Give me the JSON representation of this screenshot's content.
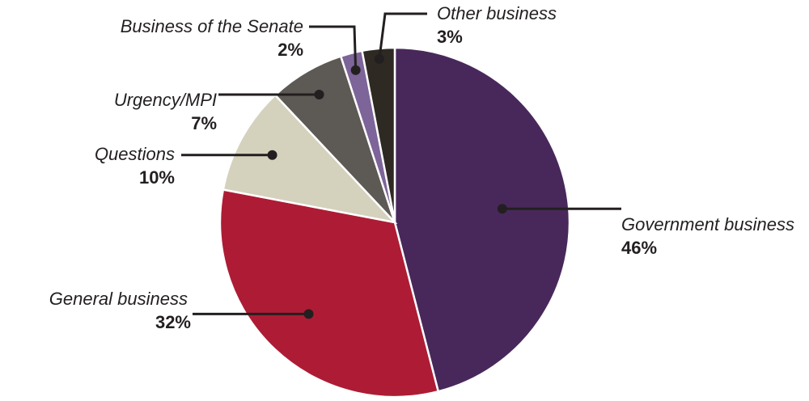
{
  "chart_data": {
    "type": "pie",
    "start": "12 o'clock",
    "direction": "clockwise",
    "slices": [
      {
        "label": "Government business",
        "value": 46,
        "display": "46%",
        "color": "#48285a"
      },
      {
        "label": "General business",
        "value": 32,
        "display": "32%",
        "color": "#ad1c34"
      },
      {
        "label": "Questions",
        "value": 10,
        "display": "10%",
        "color": "#d4d1bd"
      },
      {
        "label": "Urgency/MPI",
        "value": 7,
        "display": "7%",
        "color": "#5d5955"
      },
      {
        "label": "Business of the Senate",
        "value": 2,
        "display": "2%",
        "color": "#7d6499"
      },
      {
        "label": "Other business",
        "value": 3,
        "display": "3%",
        "color": "#2e2923"
      }
    ]
  }
}
